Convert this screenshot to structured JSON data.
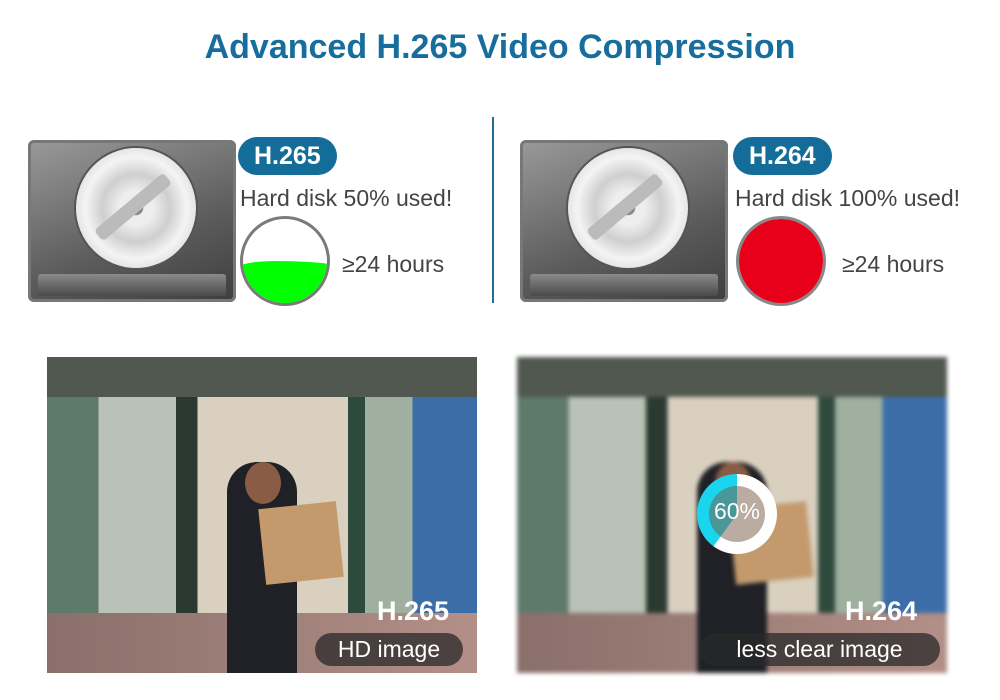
{
  "title": "Advanced H.265 Video Compression",
  "left": {
    "codec": "H.265",
    "usage_text": "Hard disk 50% used!",
    "usage_fraction": 0.5,
    "gauge_color": "#00ff00",
    "hours": "≥24 hours",
    "photo_codec": "H.265",
    "photo_label": "HD image"
  },
  "right": {
    "codec": "H.264",
    "usage_text": "Hard disk 100% used!",
    "usage_fraction": 1.0,
    "gauge_color": "#e8001b",
    "hours": "≥24 hours",
    "photo_codec": "H.264",
    "photo_label": "less clear image",
    "progress_text": "60%",
    "progress_fraction": 0.6
  },
  "colors": {
    "title": "#176e9d",
    "badge": "#146d99",
    "ring": "#19d6ee"
  }
}
